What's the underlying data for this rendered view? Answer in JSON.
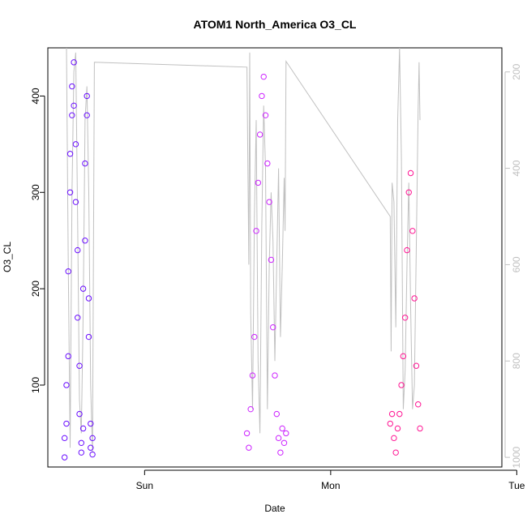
{
  "chart_data": {
    "type": "scatter",
    "title": "ATOM1 North_America O3_CL",
    "xlabel": "Date",
    "ylabel": "O3_CL",
    "right_axis": {
      "ylim": [
        1020,
        150
      ],
      "ticks": [
        200,
        400,
        600,
        800,
        1000
      ],
      "tick_labels": [
        "200",
        "400",
        "600",
        "800",
        "1000"
      ],
      "color": "#c0c0c0",
      "description": "pressure line",
      "line_points": [
        {
          "x": -0.42,
          "y": 150
        },
        {
          "x": -0.41,
          "y": 600
        },
        {
          "x": -0.4,
          "y": 980
        },
        {
          "x": -0.39,
          "y": 450
        },
        {
          "x": -0.38,
          "y": 200
        },
        {
          "x": -0.37,
          "y": 160
        },
        {
          "x": -0.36,
          "y": 500
        },
        {
          "x": -0.35,
          "y": 880
        },
        {
          "x": -0.34,
          "y": 950
        },
        {
          "x": -0.33,
          "y": 700
        },
        {
          "x": -0.32,
          "y": 300
        },
        {
          "x": -0.31,
          "y": 230
        },
        {
          "x": -0.3,
          "y": 450
        },
        {
          "x": -0.29,
          "y": 850
        },
        {
          "x": -0.28,
          "y": 990
        },
        {
          "x": -0.27,
          "y": 180
        },
        {
          "x": 0.55,
          "y": 190
        },
        {
          "x": 0.56,
          "y": 600
        },
        {
          "x": 0.565,
          "y": 160
        },
        {
          "x": 0.57,
          "y": 700
        },
        {
          "x": 0.58,
          "y": 900
        },
        {
          "x": 0.59,
          "y": 500
        },
        {
          "x": 0.6,
          "y": 300
        },
        {
          "x": 0.61,
          "y": 800
        },
        {
          "x": 0.62,
          "y": 950
        },
        {
          "x": 0.63,
          "y": 520
        },
        {
          "x": 0.64,
          "y": 270
        },
        {
          "x": 0.65,
          "y": 400
        },
        {
          "x": 0.66,
          "y": 900
        },
        {
          "x": 0.67,
          "y": 600
        },
        {
          "x": 0.68,
          "y": 450
        },
        {
          "x": 0.69,
          "y": 550
        },
        {
          "x": 0.7,
          "y": 800
        },
        {
          "x": 0.71,
          "y": 600
        },
        {
          "x": 0.72,
          "y": 400
        },
        {
          "x": 0.73,
          "y": 750
        },
        {
          "x": 0.74,
          "y": 600
        },
        {
          "x": 0.75,
          "y": 420
        },
        {
          "x": 0.755,
          "y": 530
        },
        {
          "x": 0.76,
          "y": 178
        },
        {
          "x": 1.32,
          "y": 500
        },
        {
          "x": 1.325,
          "y": 780
        },
        {
          "x": 1.33,
          "y": 430
        },
        {
          "x": 1.34,
          "y": 470
        },
        {
          "x": 1.35,
          "y": 730
        },
        {
          "x": 1.36,
          "y": 300
        },
        {
          "x": 1.37,
          "y": 150
        },
        {
          "x": 1.38,
          "y": 380
        },
        {
          "x": 1.39,
          "y": 900
        },
        {
          "x": 1.4,
          "y": 820
        },
        {
          "x": 1.41,
          "y": 600
        },
        {
          "x": 1.42,
          "y": 430
        },
        {
          "x": 1.43,
          "y": 690
        },
        {
          "x": 1.44,
          "y": 900
        },
        {
          "x": 1.45,
          "y": 850
        },
        {
          "x": 1.46,
          "y": 570
        },
        {
          "x": 1.47,
          "y": 280
        },
        {
          "x": 1.475,
          "y": 180
        },
        {
          "x": 1.48,
          "y": 300
        }
      ]
    },
    "x_axis": {
      "unit": "days relative to Sun 00:00",
      "xlim": [
        -0.52,
        1.92
      ],
      "ticks": [
        0,
        1,
        2
      ],
      "tick_labels": [
        "Sun",
        "Mon",
        "Tue"
      ]
    },
    "ylim": [
      15,
      450
    ],
    "y_ticks": [
      100,
      200,
      300,
      400
    ],
    "y_tick_labels": [
      "100",
      "200",
      "300",
      "400"
    ],
    "grid": false,
    "legend": "none",
    "colors": {
      "group1": "#6a0dff",
      "group2": "#cc22ff",
      "group3": "#ff1493",
      "line": "#c0c0c0"
    },
    "series": [
      {
        "group": 1,
        "color": "#6a0dff",
        "x_range": [
          -0.44,
          -0.27
        ],
        "points": [
          {
            "x": -0.43,
            "y": 25
          },
          {
            "x": -0.43,
            "y": 45
          },
          {
            "x": -0.42,
            "y": 60
          },
          {
            "x": -0.42,
            "y": 100
          },
          {
            "x": -0.41,
            "y": 130
          },
          {
            "x": -0.41,
            "y": 218
          },
          {
            "x": -0.4,
            "y": 300
          },
          {
            "x": -0.4,
            "y": 340
          },
          {
            "x": -0.39,
            "y": 380
          },
          {
            "x": -0.39,
            "y": 410
          },
          {
            "x": -0.38,
            "y": 435
          },
          {
            "x": -0.38,
            "y": 390
          },
          {
            "x": -0.37,
            "y": 350
          },
          {
            "x": -0.37,
            "y": 290
          },
          {
            "x": -0.36,
            "y": 240
          },
          {
            "x": -0.36,
            "y": 170
          },
          {
            "x": -0.35,
            "y": 120
          },
          {
            "x": -0.35,
            "y": 70
          },
          {
            "x": -0.34,
            "y": 40
          },
          {
            "x": -0.34,
            "y": 30
          },
          {
            "x": -0.33,
            "y": 55
          },
          {
            "x": -0.33,
            "y": 200
          },
          {
            "x": -0.32,
            "y": 250
          },
          {
            "x": -0.32,
            "y": 330
          },
          {
            "x": -0.31,
            "y": 400
          },
          {
            "x": -0.31,
            "y": 380
          },
          {
            "x": -0.3,
            "y": 190
          },
          {
            "x": -0.3,
            "y": 150
          },
          {
            "x": -0.29,
            "y": 60
          },
          {
            "x": -0.29,
            "y": 35
          },
          {
            "x": -0.28,
            "y": 45
          },
          {
            "x": -0.28,
            "y": 28
          }
        ]
      },
      {
        "group": 2,
        "color": "#cc22ff",
        "x_range": [
          0.55,
          0.76
        ],
        "points": [
          {
            "x": 0.55,
            "y": 50
          },
          {
            "x": 0.56,
            "y": 35
          },
          {
            "x": 0.57,
            "y": 75
          },
          {
            "x": 0.58,
            "y": 110
          },
          {
            "x": 0.59,
            "y": 150
          },
          {
            "x": 0.6,
            "y": 260
          },
          {
            "x": 0.61,
            "y": 310
          },
          {
            "x": 0.62,
            "y": 360
          },
          {
            "x": 0.63,
            "y": 400
          },
          {
            "x": 0.64,
            "y": 420
          },
          {
            "x": 0.65,
            "y": 380
          },
          {
            "x": 0.66,
            "y": 330
          },
          {
            "x": 0.67,
            "y": 290
          },
          {
            "x": 0.68,
            "y": 230
          },
          {
            "x": 0.69,
            "y": 160
          },
          {
            "x": 0.7,
            "y": 110
          },
          {
            "x": 0.71,
            "y": 70
          },
          {
            "x": 0.72,
            "y": 45
          },
          {
            "x": 0.73,
            "y": 30
          },
          {
            "x": 0.74,
            "y": 55
          },
          {
            "x": 0.75,
            "y": 40
          },
          {
            "x": 0.76,
            "y": 50
          }
        ]
      },
      {
        "group": 3,
        "color": "#ff1493",
        "x_range": [
          1.32,
          1.48
        ],
        "points": [
          {
            "x": 1.32,
            "y": 60
          },
          {
            "x": 1.33,
            "y": 70
          },
          {
            "x": 1.34,
            "y": 45
          },
          {
            "x": 1.35,
            "y": 30
          },
          {
            "x": 1.36,
            "y": 55
          },
          {
            "x": 1.37,
            "y": 70
          },
          {
            "x": 1.38,
            "y": 100
          },
          {
            "x": 1.39,
            "y": 130
          },
          {
            "x": 1.4,
            "y": 170
          },
          {
            "x": 1.41,
            "y": 240
          },
          {
            "x": 1.42,
            "y": 300
          },
          {
            "x": 1.43,
            "y": 320
          },
          {
            "x": 1.44,
            "y": 260
          },
          {
            "x": 1.45,
            "y": 190
          },
          {
            "x": 1.46,
            "y": 120
          },
          {
            "x": 1.47,
            "y": 80
          },
          {
            "x": 1.48,
            "y": 55
          }
        ]
      }
    ]
  }
}
